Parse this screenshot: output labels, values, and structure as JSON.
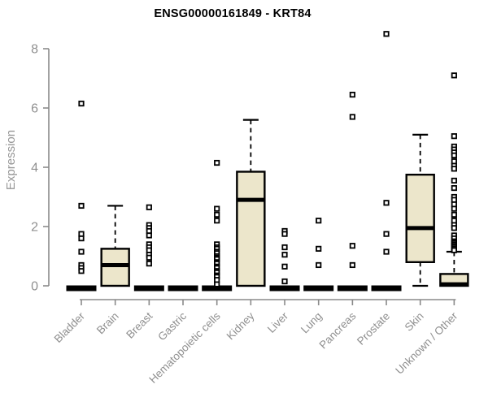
{
  "chart_data": {
    "type": "boxplot",
    "title": "ENSG00000161849 - KRT84",
    "xlabel": "",
    "ylabel": "Expression",
    "ylim": [
      0,
      8
    ],
    "yticks": [
      0,
      2,
      4,
      6,
      8
    ],
    "grid": false,
    "legend": "none",
    "categories": [
      "Bladder",
      "Brain",
      "Breast",
      "Gastric",
      "Hematopoietic cells",
      "Kidney",
      "Liver",
      "Lung",
      "Pancreas",
      "Prostate",
      "Skin",
      "Unknown / Other"
    ],
    "series": [
      {
        "category": "Bladder",
        "flat": true,
        "q1": 0,
        "median": 0,
        "q3": 0,
        "whisker_low": 0,
        "whisker_high": 0,
        "outliers": [
          6.15,
          2.7,
          1.75,
          1.6,
          1.15,
          0.7,
          0.6,
          0.5
        ]
      },
      {
        "category": "Brain",
        "flat": false,
        "q1": 0,
        "median": 0.7,
        "q3": 1.25,
        "whisker_low": 0,
        "whisker_high": 2.7,
        "outliers": []
      },
      {
        "category": "Breast",
        "flat": true,
        "q1": 0,
        "median": 0,
        "q3": 0,
        "whisker_low": 0,
        "whisker_high": 0,
        "outliers": [
          2.65,
          2.05,
          1.95,
          1.85,
          1.7,
          1.4,
          1.3,
          1.2,
          1.05,
          0.95,
          0.75
        ]
      },
      {
        "category": "Gastric",
        "flat": true,
        "q1": 0,
        "median": 0,
        "q3": 0,
        "whisker_low": 0,
        "whisker_high": 0,
        "outliers": []
      },
      {
        "category": "Hematopoietic cells",
        "flat": true,
        "q1": 0,
        "median": 0,
        "q3": 0,
        "whisker_low": 0,
        "whisker_high": 0,
        "outliers": [
          4.15,
          2.6,
          2.4,
          2.2,
          1.4,
          1.3,
          1.25,
          1.15,
          1.1,
          1.0,
          0.95,
          0.9,
          0.8,
          0.75,
          0.65,
          0.6,
          0.5,
          0.45,
          0.35,
          0.3,
          0.2,
          0.05
        ]
      },
      {
        "category": "Kidney",
        "flat": false,
        "q1": 0,
        "median": 2.9,
        "q3": 3.85,
        "whisker_low": 0,
        "whisker_high": 5.6,
        "outliers": []
      },
      {
        "category": "Liver",
        "flat": true,
        "q1": 0,
        "median": 0,
        "q3": 0,
        "whisker_low": 0,
        "whisker_high": 0,
        "outliers": [
          1.85,
          1.75,
          1.3,
          1.05,
          0.65,
          0.15
        ]
      },
      {
        "category": "Lung",
        "flat": true,
        "q1": 0,
        "median": 0,
        "q3": 0,
        "whisker_low": 0,
        "whisker_high": 0,
        "outliers": [
          2.2,
          1.25,
          0.7
        ]
      },
      {
        "category": "Pancreas",
        "flat": true,
        "q1": 0,
        "median": 0,
        "q3": 0,
        "whisker_low": 0,
        "whisker_high": 0,
        "outliers": [
          6.45,
          5.7,
          1.35,
          0.7
        ]
      },
      {
        "category": "Prostate",
        "flat": true,
        "q1": 0,
        "median": 0,
        "q3": 0,
        "whisker_low": 0,
        "whisker_high": 0,
        "outliers": [
          8.5,
          2.8,
          1.75,
          1.15
        ]
      },
      {
        "category": "Skin",
        "flat": false,
        "q1": 0.8,
        "median": 1.95,
        "q3": 3.75,
        "whisker_low": 0,
        "whisker_high": 5.1,
        "outliers": []
      },
      {
        "category": "Unknown / Other",
        "flat": false,
        "q1": 0,
        "median": 0.05,
        "q3": 0.4,
        "whisker_low": 0,
        "whisker_high": 1.15,
        "outliers": [
          7.1,
          5.05,
          4.7,
          4.6,
          4.5,
          4.4,
          4.2,
          4.05,
          3.95,
          3.55,
          3.3,
          3.0,
          2.9,
          2.75,
          2.6,
          2.4,
          2.2,
          2.05,
          1.95,
          1.7,
          1.6,
          1.5,
          1.45,
          1.4,
          1.35,
          1.3,
          1.25,
          1.2
        ]
      }
    ],
    "colors": {
      "box_fill": "#ece6cb",
      "box_stroke": "#000000",
      "median": "#000000",
      "whisker": "#000000",
      "outlier_fill": "#ffffff",
      "outlier_stroke": "#000000",
      "axis": "#8a8a8a",
      "tick_label": "#8f8f8f",
      "title": "#000000"
    }
  }
}
